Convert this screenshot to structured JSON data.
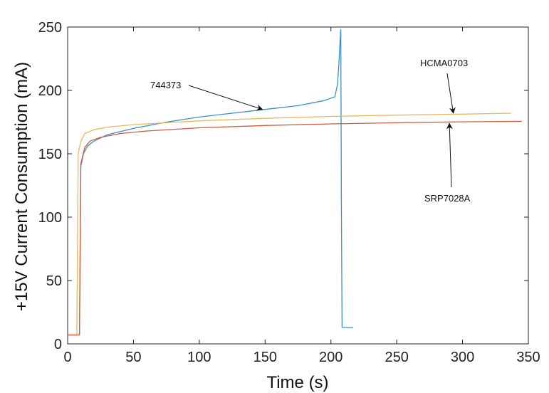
{
  "chart_data": {
    "type": "line",
    "title": "",
    "xlabel": "Time (s)",
    "ylabel": "+15V Current Consumption (mA)",
    "xlim": [
      0,
      350
    ],
    "ylim": [
      0,
      250
    ],
    "xticks": [
      "0",
      "50",
      "100",
      "150",
      "200",
      "250",
      "300",
      "350"
    ],
    "yticks": [
      "0",
      "50",
      "100",
      "150",
      "200",
      "250"
    ],
    "grid": false,
    "series": [
      {
        "name": "744373",
        "color": "#3a8fc7",
        "x": [
          0,
          9,
          10,
          12,
          15,
          20,
          30,
          50,
          75,
          100,
          125,
          150,
          175,
          195,
          203,
          205,
          206,
          207,
          207.5,
          208,
          208.5,
          210,
          212,
          217
        ],
        "y": [
          7,
          7,
          140,
          150,
          156,
          160,
          165,
          170,
          175,
          179,
          182,
          185,
          188,
          192,
          195,
          205,
          220,
          240,
          248,
          100,
          13,
          13,
          13,
          13
        ]
      },
      {
        "name": "HCMA0703",
        "color": "#e8b85a",
        "x": [
          0,
          7,
          8,
          10,
          13,
          20,
          30,
          50,
          100,
          150,
          200,
          250,
          300,
          337
        ],
        "y": [
          7,
          7,
          150,
          160,
          166,
          169,
          171,
          173,
          176,
          178,
          179.5,
          180.5,
          181.3,
          182
        ]
      },
      {
        "name": "SRP7028A",
        "color": "#d35a3e",
        "x": [
          0,
          9,
          10,
          13,
          17,
          25,
          40,
          60,
          100,
          150,
          200,
          250,
          300,
          345
        ],
        "y": [
          7,
          7,
          142,
          155,
          160,
          163,
          166,
          168,
          170.5,
          172.3,
          173.6,
          174.5,
          175.2,
          175.6
        ]
      }
    ],
    "annotations": [
      {
        "text": "744373",
        "target_x": 148,
        "target_y": 185
      },
      {
        "text": "HCMA0703",
        "target_x": 293,
        "target_y": 182
      },
      {
        "text": "SRP7028A",
        "target_x": 290,
        "target_y": 174
      }
    ]
  }
}
